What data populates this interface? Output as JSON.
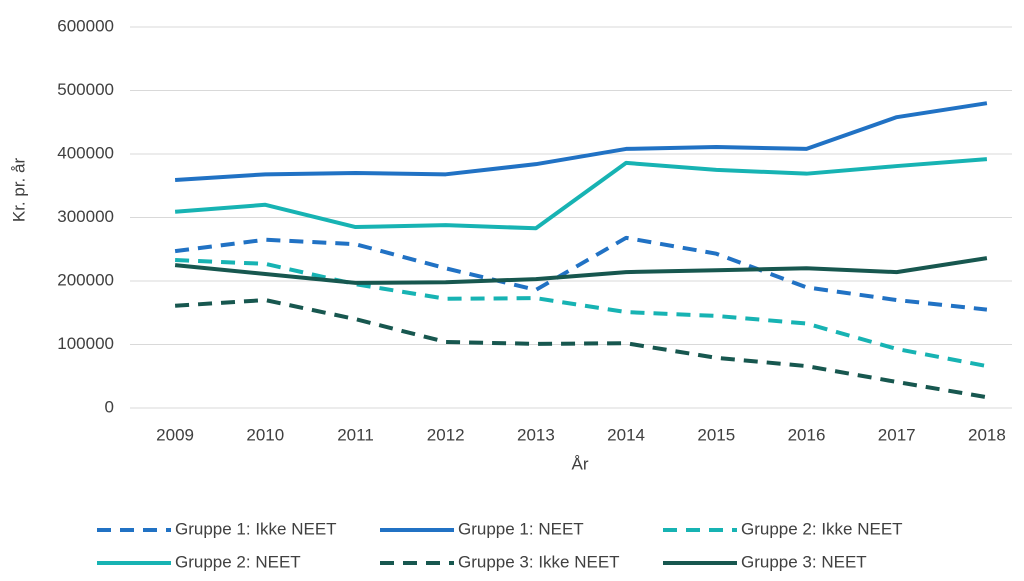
{
  "chart_data": {
    "type": "line",
    "x_label": "År",
    "y_label": "Kr. pr. år",
    "categories": [
      "2009",
      "2010",
      "2011",
      "2012",
      "2013",
      "2014",
      "2015",
      "2016",
      "2017",
      "2018"
    ],
    "ylim": [
      0,
      600000
    ],
    "yticks": [
      0,
      100000,
      200000,
      300000,
      400000,
      500000,
      600000
    ],
    "grid": true,
    "legend": "bottom",
    "series": [
      {
        "name": "Gruppe 1: Ikke NEET",
        "color": "#2172C4",
        "dashed": true,
        "values": [
          247000,
          265000,
          258000,
          220000,
          186000,
          268000,
          243000,
          190000,
          170000,
          155000
        ]
      },
      {
        "name": "Gruppe 1: NEET",
        "color": "#2172C4",
        "dashed": false,
        "values": [
          359000,
          368000,
          370000,
          368000,
          384000,
          408000,
          411000,
          408000,
          458000,
          480000
        ]
      },
      {
        "name": "Gruppe 2: Ikke NEET",
        "color": "#17B3B3",
        "dashed": true,
        "values": [
          233000,
          227000,
          195000,
          172000,
          173000,
          151000,
          145000,
          133000,
          93000,
          66000
        ]
      },
      {
        "name": "Gruppe 2: NEET",
        "color": "#17B3B3",
        "dashed": false,
        "values": [
          309000,
          320000,
          285000,
          288000,
          283000,
          386000,
          375000,
          369000,
          381000,
          392000
        ]
      },
      {
        "name": "Gruppe 3: Ikke NEET",
        "color": "#17574F",
        "dashed": true,
        "values": [
          161000,
          170000,
          140000,
          104000,
          101000,
          102000,
          79000,
          66000,
          41000,
          17000
        ]
      },
      {
        "name": "Gruppe 3: NEET",
        "color": "#17574F",
        "dashed": false,
        "values": [
          225000,
          211000,
          197000,
          198000,
          203000,
          214000,
          217000,
          220000,
          214000,
          236000
        ]
      }
    ]
  }
}
